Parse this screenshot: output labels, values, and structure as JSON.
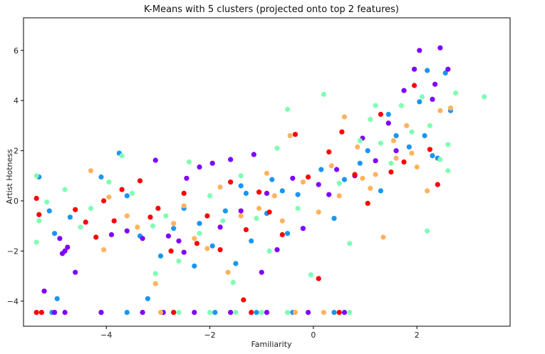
{
  "chart_data": {
    "type": "scatter",
    "title": "K-Means with 5 clusters (projected onto top 2 features)",
    "xlabel": "Familiarity",
    "ylabel": "Artist Hotness",
    "xlim": [
      -5.6,
      3.8
    ],
    "ylim": [
      -5.0,
      7.3
    ],
    "xticks": [
      -4,
      -2,
      0,
      2
    ],
    "yticks": [
      -4,
      -2,
      0,
      2,
      4,
      6
    ],
    "grid": false,
    "legend": "none",
    "marker": "circle",
    "series_colors": [
      "#8000ff",
      "#1996f3",
      "#80ffb4",
      "#ffb360",
      "#ff0000"
    ],
    "cluster_draw_order": [
      1,
      0,
      3,
      4,
      2
    ],
    "series": [
      {
        "values": [
          [
            -5.2,
            -3.6
          ],
          [
            -4.8,
            -2.0
          ],
          [
            -4.85,
            -2.1
          ],
          [
            -4.75,
            -1.85
          ],
          [
            -4.9,
            -1.5
          ],
          [
            -4.6,
            -2.85
          ],
          [
            -3.9,
            -1.35
          ],
          [
            -3.6,
            -1.2
          ],
          [
            -3.3,
            -1.5
          ],
          [
            -3.05,
            1.62
          ],
          [
            -2.8,
            -1.4
          ],
          [
            -2.6,
            -1.6
          ],
          [
            -2.45,
            0.9
          ],
          [
            -2.2,
            1.35
          ],
          [
            -1.95,
            1.5
          ],
          [
            -1.6,
            1.65
          ],
          [
            -1.15,
            1.85
          ],
          [
            -1.0,
            -2.85
          ],
          [
            -0.7,
            -1.95
          ],
          [
            -0.2,
            -1.1
          ],
          [
            0.1,
            0.65
          ],
          [
            0.45,
            1.25
          ],
          [
            0.95,
            2.5
          ],
          [
            1.45,
            3.1
          ],
          [
            1.75,
            4.4
          ],
          [
            1.95,
            5.25
          ],
          [
            2.05,
            6.0
          ],
          [
            2.3,
            4.05
          ],
          [
            2.45,
            6.1
          ],
          [
            2.6,
            5.25
          ],
          [
            2.35,
            4.65
          ],
          [
            -2.5,
            -2.05
          ],
          [
            -1.8,
            -1.05
          ],
          [
            -1.4,
            -0.4
          ],
          [
            -0.9,
            0.3
          ],
          [
            -0.4,
            0.9
          ],
          [
            0.3,
            0.25
          ],
          [
            0.8,
            1.0
          ],
          [
            1.2,
            1.6
          ],
          [
            1.6,
            2.0
          ],
          [
            -3.3,
            -4.45
          ],
          [
            -2.9,
            -4.45
          ],
          [
            -2.3,
            -4.45
          ],
          [
            -1.6,
            -4.45
          ],
          [
            -0.9,
            -4.45
          ],
          [
            -0.1,
            -4.45
          ],
          [
            0.6,
            -4.45
          ],
          [
            -4.8,
            -4.45
          ],
          [
            -5.0,
            -4.45
          ],
          [
            -4.1,
            -4.45
          ]
        ]
      },
      {
        "values": [
          [
            -5.3,
            0.95
          ],
          [
            -5.1,
            -0.4
          ],
          [
            -5.0,
            -1.3
          ],
          [
            -4.95,
            -3.9
          ],
          [
            -4.7,
            -0.65
          ],
          [
            -4.1,
            0.95
          ],
          [
            -3.75,
            1.9
          ],
          [
            -3.6,
            0.2
          ],
          [
            -3.35,
            -1.4
          ],
          [
            -3.2,
            -3.9
          ],
          [
            -2.95,
            -2.2
          ],
          [
            -2.7,
            -1.1
          ],
          [
            -2.5,
            -0.3
          ],
          [
            -2.2,
            -0.9
          ],
          [
            -1.95,
            -1.8
          ],
          [
            -1.7,
            -0.4
          ],
          [
            -1.4,
            0.6
          ],
          [
            -1.2,
            -1.6
          ],
          [
            -0.9,
            -0.5
          ],
          [
            -0.6,
            0.4
          ],
          [
            -0.3,
            0.25
          ],
          [
            0.15,
            1.25
          ],
          [
            0.6,
            0.85
          ],
          [
            1.05,
            2.0
          ],
          [
            1.45,
            3.45
          ],
          [
            1.85,
            2.15
          ],
          [
            2.15,
            2.6
          ],
          [
            2.4,
            1.7
          ],
          [
            2.65,
            3.6
          ],
          [
            2.2,
            5.2
          ],
          [
            2.55,
            5.1
          ],
          [
            2.3,
            1.8
          ],
          [
            2.05,
            3.95
          ],
          [
            1.3,
            0.4
          ],
          [
            0.4,
            -0.7
          ],
          [
            -0.5,
            -1.3
          ],
          [
            -1.5,
            -2.5
          ],
          [
            -2.3,
            -2.6
          ],
          [
            -4.1,
            -4.45
          ],
          [
            -3.6,
            -4.45
          ],
          [
            -2.7,
            -4.45
          ],
          [
            -1.9,
            -4.45
          ],
          [
            -1.1,
            -4.45
          ],
          [
            -0.4,
            -4.45
          ],
          [
            0.4,
            -4.45
          ],
          [
            -5.05,
            -4.45
          ],
          [
            -1.3,
            0.3
          ],
          [
            -0.8,
            0.85
          ],
          [
            0.9,
            1.5
          ],
          [
            1.6,
            2.6
          ]
        ]
      },
      {
        "values": [
          [
            -5.35,
            1.0
          ],
          [
            -5.3,
            -0.8
          ],
          [
            -5.35,
            -1.65
          ],
          [
            -5.15,
            -0.05
          ],
          [
            -4.8,
            0.45
          ],
          [
            -4.5,
            -1.05
          ],
          [
            -4.3,
            -0.3
          ],
          [
            -3.95,
            0.75
          ],
          [
            -3.7,
            1.8
          ],
          [
            -3.5,
            0.3
          ],
          [
            -3.1,
            -1.0
          ],
          [
            -3.05,
            -2.9
          ],
          [
            -2.85,
            -0.6
          ],
          [
            -2.6,
            -2.4
          ],
          [
            -2.4,
            1.55
          ],
          [
            -2.2,
            -1.3
          ],
          [
            -2.0,
            0.2
          ],
          [
            -1.75,
            -0.8
          ],
          [
            -1.55,
            -3.25
          ],
          [
            -1.4,
            1.0
          ],
          [
            -1.1,
            -0.7
          ],
          [
            -0.85,
            -2.0
          ],
          [
            -0.7,
            2.1
          ],
          [
            -0.5,
            3.65
          ],
          [
            -0.3,
            -0.3
          ],
          [
            -0.05,
            -2.95
          ],
          [
            0.2,
            4.25
          ],
          [
            0.5,
            0.7
          ],
          [
            0.7,
            -1.7
          ],
          [
            0.9,
            2.4
          ],
          [
            1.1,
            3.25
          ],
          [
            1.3,
            2.3
          ],
          [
            1.5,
            1.5
          ],
          [
            1.7,
            3.8
          ],
          [
            1.9,
            2.75
          ],
          [
            2.1,
            4.15
          ],
          [
            2.25,
            3.0
          ],
          [
            2.45,
            1.65
          ],
          [
            2.6,
            2.25
          ],
          [
            2.75,
            4.3
          ],
          [
            3.3,
            4.15
          ],
          [
            2.6,
            1.2
          ],
          [
            2.2,
            -1.2
          ],
          [
            -2.0,
            -4.45
          ],
          [
            -1.5,
            -4.45
          ],
          [
            -1.0,
            -4.45
          ],
          [
            -0.5,
            -4.45
          ],
          [
            0.7,
            -4.45
          ],
          [
            -2.6,
            -4.45
          ],
          [
            1.2,
            3.8
          ]
        ]
      },
      {
        "values": [
          [
            -4.3,
            1.2
          ],
          [
            -4.05,
            -1.95
          ],
          [
            -3.95,
            0.15
          ],
          [
            -3.6,
            -0.6
          ],
          [
            -3.05,
            -3.3
          ],
          [
            -2.7,
            -0.9
          ],
          [
            -2.3,
            -1.5
          ],
          [
            -2.05,
            -1.9
          ],
          [
            -1.65,
            -2.85
          ],
          [
            -1.4,
            -0.6
          ],
          [
            -1.05,
            -0.3
          ],
          [
            -0.75,
            0.2
          ],
          [
            -0.45,
            2.6
          ],
          [
            -0.2,
            0.75
          ],
          [
            0.1,
            -0.45
          ],
          [
            0.35,
            1.4
          ],
          [
            0.6,
            3.35
          ],
          [
            0.85,
            2.15
          ],
          [
            1.1,
            0.5
          ],
          [
            1.35,
            -1.45
          ],
          [
            1.6,
            1.7
          ],
          [
            1.8,
            3.0
          ],
          [
            2.0,
            1.35
          ],
          [
            2.25,
            2.05
          ],
          [
            2.45,
            3.6
          ],
          [
            2.65,
            3.7
          ],
          [
            -0.35,
            -4.45
          ],
          [
            0.2,
            -4.45
          ],
          [
            -2.95,
            -4.45
          ],
          [
            -1.8,
            0.55
          ],
          [
            -0.9,
            1.1
          ],
          [
            0.5,
            0.2
          ],
          [
            1.2,
            1.05
          ],
          [
            1.55,
            2.4
          ],
          [
            -2.5,
            -0.2
          ],
          [
            -3.4,
            -1.05
          ],
          [
            -0.6,
            -0.8
          ],
          [
            0.95,
            0.9
          ],
          [
            1.9,
            1.9
          ],
          [
            2.2,
            0.4
          ]
        ]
      },
      {
        "values": [
          [
            -5.35,
            0.1
          ],
          [
            -5.3,
            -0.55
          ],
          [
            -4.6,
            -0.35
          ],
          [
            -4.4,
            -0.85
          ],
          [
            -4.2,
            -1.45
          ],
          [
            -4.05,
            0.0
          ],
          [
            -3.85,
            -0.8
          ],
          [
            -3.7,
            0.45
          ],
          [
            -3.35,
            0.8
          ],
          [
            -3.15,
            -0.65
          ],
          [
            -3.0,
            -0.3
          ],
          [
            -2.75,
            -2.0
          ],
          [
            -2.5,
            0.3
          ],
          [
            -2.25,
            -1.7
          ],
          [
            -2.05,
            -0.6
          ],
          [
            -1.8,
            -1.95
          ],
          [
            -1.6,
            0.75
          ],
          [
            -1.35,
            -3.95
          ],
          [
            -1.3,
            -1.15
          ],
          [
            -1.05,
            0.35
          ],
          [
            -0.85,
            -0.45
          ],
          [
            -0.6,
            -1.35
          ],
          [
            -0.35,
            2.65
          ],
          [
            -0.1,
            0.95
          ],
          [
            0.1,
            -3.1
          ],
          [
            0.3,
            1.95
          ],
          [
            0.55,
            2.75
          ],
          [
            0.8,
            1.05
          ],
          [
            1.05,
            -0.1
          ],
          [
            1.3,
            3.45
          ],
          [
            1.5,
            1.15
          ],
          [
            1.75,
            1.55
          ],
          [
            1.95,
            4.6
          ],
          [
            2.25,
            2.05
          ],
          [
            2.4,
            0.65
          ],
          [
            -5.35,
            -4.45
          ],
          [
            -5.25,
            -4.45
          ],
          [
            -2.7,
            -4.45
          ],
          [
            -1.2,
            -4.45
          ],
          [
            0.5,
            -4.45
          ]
        ]
      }
    ]
  }
}
